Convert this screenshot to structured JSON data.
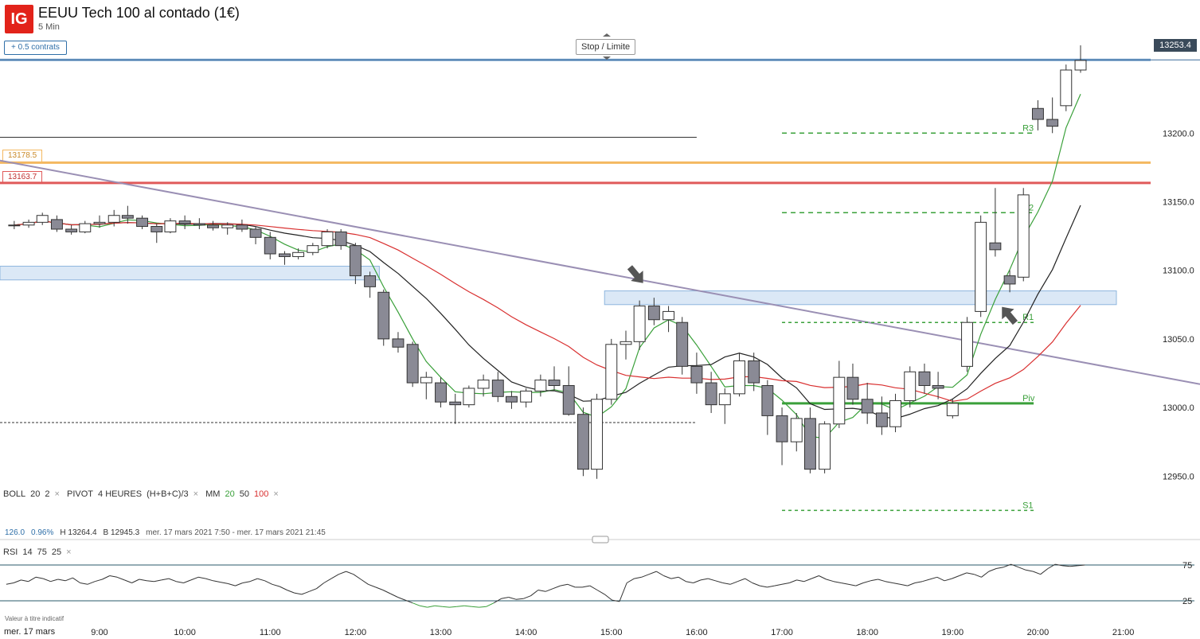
{
  "header": {
    "logo": "IG",
    "title": "EEUU Tech 100 al contado (1€)",
    "timeframe": "5 Min"
  },
  "toolbar": {
    "contracts_label": "+ 0.5 contrats",
    "stop_label": "Stop / Limite"
  },
  "current_price": "13253.4",
  "levels": {
    "orange": "13178.5",
    "red": "13163.7"
  },
  "indicators": {
    "boll": {
      "name": "BOLL",
      "p1": "20",
      "p2": "2"
    },
    "pivot": {
      "name": "PIVOT",
      "p1": "4 HEURES",
      "p2": "(H+B+C)/3"
    },
    "mm": {
      "name": "MM",
      "p1": "20",
      "p2": "50",
      "p3": "100"
    },
    "remove": "×"
  },
  "stats": {
    "change": "126.0",
    "change_pct": "0.96%",
    "high": "H 13264.4",
    "low": "B 12945.3",
    "range": "mer. 17 mars 2021 7:50 - mer. 17 mars 2021 21:45"
  },
  "rsi_label": {
    "name": "RSI",
    "p1": "14",
    "p2": "75",
    "p3": "25"
  },
  "note": "Valeur à titre indicatif",
  "date_label": "mer. 17 mars",
  "colors": {
    "bull": "#ffffff",
    "bear": "#8a8a95",
    "mm20": "#3aa03a",
    "mm50": "#222222",
    "mm100": "#d93030",
    "pivot": "#3aa03a",
    "orange": "#f4b860",
    "red": "#e05a5a",
    "zone": "#dbe8f6",
    "trend": "#9a8fb4"
  },
  "chart_data": {
    "type": "candlestick",
    "ylim": [
      12920,
      13275
    ],
    "y_ticks": [
      "13200.0",
      "13150.0",
      "13100.0",
      "13050.0",
      "13000.0",
      "12950.0"
    ],
    "y_tick_values": [
      13200,
      13150,
      13100,
      13050,
      13000,
      12950
    ],
    "x_ticks": [
      "9:00",
      "10:00",
      "11:00",
      "12:00",
      "13:00",
      "14:00",
      "15:00",
      "16:00",
      "17:00",
      "18:00",
      "19:00",
      "20:00",
      "21:00"
    ],
    "x_tick_hours": [
      9,
      10,
      11,
      12,
      13,
      14,
      15,
      16,
      17,
      18,
      19,
      20,
      21
    ],
    "x_range_hours": [
      7.8333,
      21.9
    ],
    "pivots": [
      {
        "label": "R3",
        "value": 13200,
        "from": 17.0,
        "to": 19.95
      },
      {
        "label": "R2",
        "value": 13142,
        "from": 17.0,
        "to": 19.95
      },
      {
        "label": "R1",
        "value": 13062,
        "from": 17.0,
        "to": 19.95
      },
      {
        "label": "Piv",
        "value": 13003,
        "from": 17.0,
        "to": 19.95
      },
      {
        "label": "S1",
        "value": 12925,
        "from": 17.0,
        "to": 19.95
      }
    ],
    "horizontal_levels": [
      {
        "value": 13178.5
      },
      {
        "value": 13163.7
      },
      {
        "value": 13253.4
      }
    ],
    "candles": [
      [
        8.0,
        13133,
        13136,
        13130,
        13133
      ],
      [
        8.17,
        13133,
        13137,
        13131,
        13135
      ],
      [
        8.33,
        13135,
        13142,
        13133,
        13140
      ],
      [
        8.5,
        13137,
        13140,
        13128,
        13130
      ],
      [
        8.67,
        13130,
        13133,
        13126,
        13128
      ],
      [
        8.83,
        13128,
        13136,
        13127,
        13134
      ],
      [
        9.0,
        13134,
        13140,
        13131,
        13135
      ],
      [
        9.17,
        13135,
        13144,
        13132,
        13140
      ],
      [
        9.33,
        13140,
        13147,
        13134,
        13138
      ],
      [
        9.5,
        13138,
        13140,
        13130,
        13132
      ],
      [
        9.67,
        13132,
        13134,
        13120,
        13128
      ],
      [
        9.83,
        13128,
        13138,
        13127,
        13136
      ],
      [
        10.0,
        13136,
        13140,
        13130,
        13134
      ],
      [
        10.17,
        13134,
        13138,
        13130,
        13133
      ],
      [
        10.33,
        13133,
        13136,
        13129,
        13131
      ],
      [
        10.5,
        13131,
        13135,
        13126,
        13133
      ],
      [
        10.67,
        13133,
        13137,
        13128,
        13130
      ],
      [
        10.83,
        13130,
        13132,
        13119,
        13124
      ],
      [
        11.0,
        13124,
        13128,
        13108,
        13112
      ],
      [
        11.17,
        13112,
        13114,
        13104,
        13110
      ],
      [
        11.33,
        13110,
        13116,
        13108,
        13113
      ],
      [
        11.5,
        13113,
        13120,
        13111,
        13118
      ],
      [
        11.67,
        13118,
        13130,
        13116,
        13128
      ],
      [
        11.83,
        13128,
        13130,
        13115,
        13118
      ],
      [
        12.0,
        13118,
        13120,
        13090,
        13096
      ],
      [
        12.17,
        13096,
        13099,
        13080,
        13088
      ],
      [
        12.33,
        13084,
        13086,
        13045,
        13050
      ],
      [
        12.5,
        13050,
        13055,
        13040,
        13044
      ],
      [
        12.67,
        13046,
        13048,
        13015,
        13018
      ],
      [
        12.83,
        13018,
        13026,
        13006,
        13022
      ],
      [
        13.0,
        13018,
        13022,
        13000,
        13004
      ],
      [
        13.17,
        13004,
        13010,
        12988,
        13002
      ],
      [
        13.33,
        13002,
        13016,
        13000,
        13014
      ],
      [
        13.5,
        13014,
        13024,
        13008,
        13020
      ],
      [
        13.67,
        13020,
        13026,
        13004,
        13008
      ],
      [
        13.83,
        13008,
        13012,
        12999,
        13004
      ],
      [
        14.0,
        13004,
        13014,
        13000,
        13012
      ],
      [
        14.17,
        13012,
        13024,
        13008,
        13020
      ],
      [
        14.33,
        13020,
        13030,
        13012,
        13016
      ],
      [
        14.5,
        13016,
        13030,
        12994,
        12995
      ],
      [
        14.67,
        12995,
        13000,
        12950,
        12955
      ],
      [
        14.83,
        12955,
        13010,
        12948,
        13006
      ],
      [
        15.0,
        13006,
        13050,
        13002,
        13046
      ],
      [
        15.17,
        13046,
        13056,
        13035,
        13048
      ],
      [
        15.33,
        13048,
        13078,
        13042,
        13074
      ],
      [
        15.5,
        13074,
        13080,
        13060,
        13064
      ],
      [
        15.67,
        13064,
        13074,
        13055,
        13070
      ],
      [
        15.83,
        13062,
        13066,
        13024,
        13030
      ],
      [
        16.0,
        13030,
        13040,
        13010,
        13018
      ],
      [
        16.17,
        13018,
        13026,
        12996,
        13002
      ],
      [
        16.33,
        13002,
        13014,
        12988,
        13010
      ],
      [
        16.5,
        13010,
        13040,
        13008,
        13034
      ],
      [
        16.67,
        13034,
        13040,
        13012,
        13018
      ],
      [
        16.83,
        13016,
        13020,
        12980,
        12994
      ],
      [
        17.0,
        12994,
        13000,
        12958,
        12975
      ],
      [
        17.17,
        12975,
        12996,
        12968,
        12992
      ],
      [
        17.33,
        12992,
        13000,
        12952,
        12955
      ],
      [
        17.5,
        12955,
        12990,
        12952,
        12988
      ],
      [
        17.67,
        12988,
        13034,
        12985,
        13022
      ],
      [
        17.83,
        13022,
        13032,
        13002,
        13006
      ],
      [
        18.0,
        13006,
        13018,
        12988,
        12996
      ],
      [
        18.17,
        12996,
        13008,
        12980,
        12986
      ],
      [
        18.33,
        12986,
        13010,
        12982,
        13005
      ],
      [
        18.5,
        13005,
        13030,
        13000,
        13026
      ],
      [
        18.67,
        13026,
        13032,
        13010,
        13016
      ],
      [
        18.83,
        13016,
        13026,
        13006,
        13014
      ],
      [
        19.0,
        12994,
        13006,
        12992,
        13003
      ],
      [
        19.17,
        13030,
        13066,
        13026,
        13062
      ],
      [
        19.33,
        13070,
        13140,
        13066,
        13135
      ],
      [
        19.5,
        13120,
        13160,
        13110,
        13115
      ],
      [
        19.67,
        13096,
        13100,
        13084,
        13090
      ],
      [
        19.83,
        13095,
        13160,
        13092,
        13155
      ],
      [
        20.0,
        13218,
        13224,
        13202,
        13210
      ],
      [
        20.17,
        13210,
        13226,
        13200,
        13205
      ],
      [
        20.33,
        13220,
        13250,
        13216,
        13246
      ],
      [
        20.5,
        13246,
        13264,
        13244,
        13253
      ]
    ],
    "annotations": [
      "arrow-down",
      "arrow-up"
    ]
  },
  "rsi_chart": {
    "type": "line",
    "ylim": [
      0,
      100
    ],
    "levels": [
      75,
      25
    ],
    "level_labels": [
      "75",
      "25"
    ],
    "values": [
      48,
      50,
      54,
      52,
      58,
      56,
      52,
      55,
      53,
      57,
      50,
      48,
      52,
      55,
      60,
      58,
      54,
      50,
      55,
      53,
      52,
      54,
      56,
      52,
      50,
      54,
      58,
      56,
      53,
      51,
      49,
      46,
      50,
      52,
      56,
      53,
      48,
      45,
      40,
      36,
      34,
      38,
      42,
      50,
      56,
      62,
      66,
      62,
      55,
      48,
      44,
      40,
      35,
      30,
      26,
      22,
      18,
      16,
      18,
      17,
      16,
      17,
      18,
      17,
      16,
      17,
      22,
      28,
      30,
      27,
      28,
      32,
      40,
      38,
      42,
      46,
      48,
      44,
      44,
      46,
      40,
      34,
      26,
      24,
      50,
      56,
      58,
      62,
      66,
      60,
      56,
      58,
      52,
      50,
      54,
      56,
      53,
      50,
      48,
      52,
      56,
      50,
      46,
      44,
      46,
      48,
      50,
      54,
      52,
      56,
      60,
      55,
      52,
      50,
      48,
      46,
      50,
      53,
      55,
      52,
      50,
      48,
      46,
      50,
      52,
      55,
      58,
      53,
      56,
      60,
      64,
      62,
      58,
      66,
      70,
      72,
      76,
      72,
      68,
      66,
      62,
      70,
      76,
      74,
      73,
      74,
      75
    ]
  }
}
